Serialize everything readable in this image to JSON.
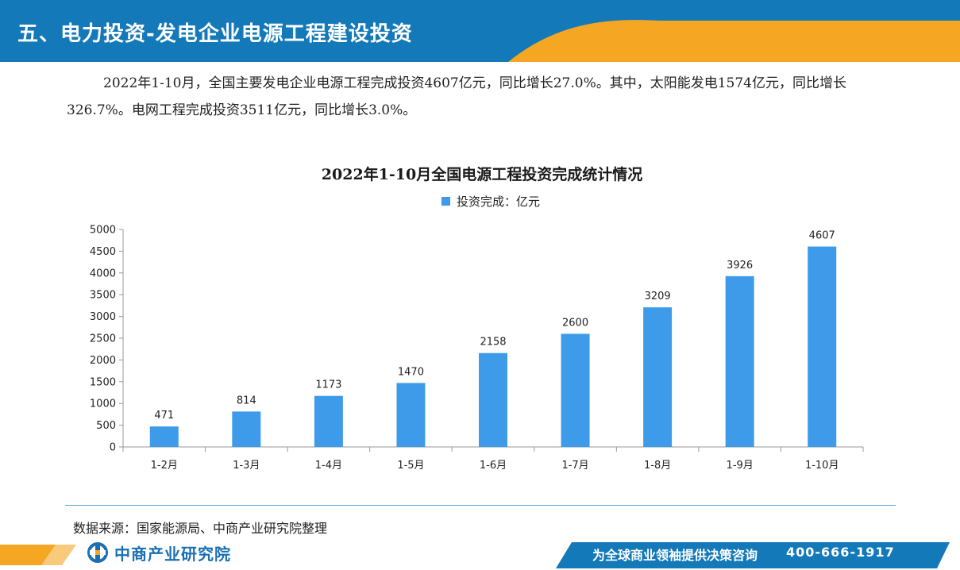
{
  "header": {
    "title": "五、电力投资-发电企业电源工程建设投资"
  },
  "paragraph": {
    "text": "2022年1-10月，全国主要发电企业电源工程完成投资4607亿元，同比增长27.0%。其中，太阳能发电1574亿元，同比增长326.7%。电网工程完成投资3511亿元，同比增长3.0%。"
  },
  "colors": {
    "header_blue": "#1479b8",
    "header_orange": "#f5a623",
    "bar": "#3d9be9",
    "footer_blue": "#1479b8",
    "footer_orange": "#f5a623"
  },
  "chart_data": {
    "type": "bar",
    "title": "2022年1-10月全国电源工程投资完成统计情况",
    "legend": "投资完成：亿元",
    "legend_position": "top",
    "categories": [
      "1-2月",
      "1-3月",
      "1-4月",
      "1-5月",
      "1-6月",
      "1-7月",
      "1-8月",
      "1-9月",
      "1-10月"
    ],
    "series": [
      {
        "name": "投资完成：亿元",
        "values": [
          471,
          814,
          1173,
          1470,
          2158,
          2600,
          3209,
          3926,
          4607
        ]
      }
    ],
    "ylim": [
      0,
      5000
    ],
    "yticks": [
      0,
      500,
      1000,
      1500,
      2000,
      2500,
      3000,
      3500,
      4000,
      4500,
      5000
    ],
    "grid": false
  },
  "source": {
    "text": "数据来源：国家能源局、中商产业研究院整理"
  },
  "footer": {
    "logo_text": "中商产业研究院",
    "slogan": "为全球商业领袖提供决策咨询",
    "phone": "400-666-1917"
  }
}
